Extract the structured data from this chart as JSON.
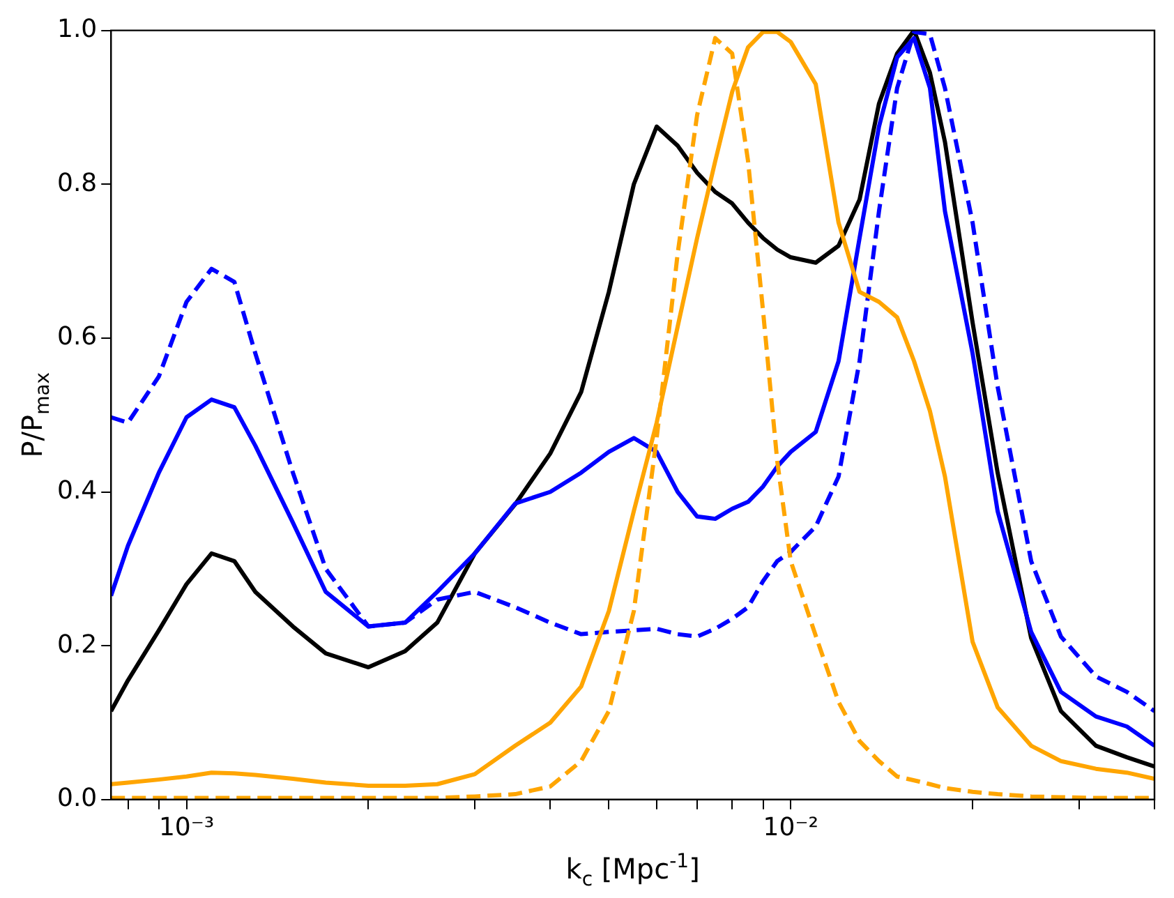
{
  "chart_data": {
    "type": "line",
    "xlabel": "k$_{c}$ [Mpc$^{-1}$]",
    "ylabel": "P/P$_{max}$",
    "log": "x",
    "marker": "none",
    "xlim": [
      0.00075,
      0.04
    ],
    "ylim": [
      0,
      1
    ],
    "xticks": [
      {
        "value": 0.0008,
        "label": null
      },
      {
        "value": 0.0009,
        "label": null
      },
      {
        "value": 0.001,
        "label": "10⁻³"
      },
      {
        "value": 0.002,
        "label": null
      },
      {
        "value": 0.003,
        "label": null
      },
      {
        "value": 0.004,
        "label": null
      },
      {
        "value": 0.005,
        "label": null
      },
      {
        "value": 0.006,
        "label": null
      },
      {
        "value": 0.007,
        "label": null
      },
      {
        "value": 0.008,
        "label": null
      },
      {
        "value": 0.009,
        "label": null
      },
      {
        "value": 0.01,
        "label": "10⁻²"
      },
      {
        "value": 0.02,
        "label": null
      },
      {
        "value": 0.03,
        "label": null
      },
      {
        "value": 0.04,
        "label": null
      }
    ],
    "yticks": [
      {
        "value": 0,
        "label": "0.0"
      },
      {
        "value": 0.2,
        "label": "0.2"
      },
      {
        "value": 0.4,
        "label": "0.4"
      },
      {
        "value": 0.6,
        "label": "0.6"
      },
      {
        "value": 0.8,
        "label": "0.8"
      },
      {
        "value": 1,
        "label": "1.0"
      }
    ],
    "x": [
      0.00075,
      0.0008,
      0.0009,
      0.001,
      0.0011,
      0.0012,
      0.0013,
      0.0015,
      0.0017,
      0.002,
      0.0023,
      0.0026,
      0.003,
      0.0035,
      0.004,
      0.0045,
      0.005,
      0.0055,
      0.006,
      0.0065,
      0.007,
      0.0075,
      0.008,
      0.0085,
      0.009,
      0.0095,
      0.01,
      0.011,
      0.012,
      0.013,
      0.014,
      0.015,
      0.016,
      0.017,
      0.018,
      0.02,
      0.022,
      0.025,
      0.028,
      0.032,
      0.036,
      0.04
    ],
    "series": [
      {
        "color": "#ffa500",
        "line_style": "solid",
        "values": [
          0.02,
          0.022,
          0.026,
          0.03,
          0.035,
          0.034,
          0.032,
          0.027,
          0.022,
          0.018,
          0.018,
          0.02,
          0.033,
          0.07,
          0.1,
          0.147,
          0.245,
          0.375,
          0.49,
          0.615,
          0.73,
          0.83,
          0.92,
          0.978,
          0.998,
          0.998,
          0.985,
          0.93,
          0.75,
          0.66,
          0.647,
          0.627,
          0.57,
          0.505,
          0.42,
          0.205,
          0.12,
          0.07,
          0.05,
          0.04,
          0.035,
          0.027
        ]
      },
      {
        "color": "#ffa500",
        "line_style": "dashed",
        "values": [
          0.002,
          0.002,
          0.002,
          0.002,
          0.002,
          0.002,
          0.002,
          0.002,
          0.002,
          0.002,
          0.002,
          0.002,
          0.004,
          0.007,
          0.017,
          0.05,
          0.115,
          0.245,
          0.47,
          0.71,
          0.89,
          0.99,
          0.97,
          0.83,
          0.635,
          0.44,
          0.31,
          0.213,
          0.127,
          0.076,
          0.05,
          0.03,
          0.025,
          0.02,
          0.015,
          0.01,
          0.007,
          0.004,
          0.003,
          0.002,
          0.002,
          0.002
        ]
      },
      {
        "color": "#0000ff",
        "line_style": "dashed",
        "values": [
          0.497,
          0.49,
          0.55,
          0.647,
          0.69,
          0.673,
          0.58,
          0.425,
          0.3,
          0.225,
          0.23,
          0.26,
          0.27,
          0.25,
          0.23,
          0.215,
          0.218,
          0.22,
          0.222,
          0.215,
          0.212,
          0.222,
          0.235,
          0.25,
          0.284,
          0.31,
          0.322,
          0.355,
          0.42,
          0.57,
          0.765,
          0.925,
          0.998,
          0.995,
          0.925,
          0.75,
          0.537,
          0.31,
          0.212,
          0.16,
          0.14,
          0.115
        ]
      },
      {
        "color": "#0000ff",
        "line_style": "solid",
        "values": [
          0.265,
          0.33,
          0.425,
          0.497,
          0.52,
          0.51,
          0.46,
          0.36,
          0.27,
          0.225,
          0.23,
          0.27,
          0.32,
          0.385,
          0.4,
          0.425,
          0.452,
          0.47,
          0.452,
          0.4,
          0.368,
          0.365,
          0.378,
          0.387,
          0.407,
          0.433,
          0.452,
          0.478,
          0.57,
          0.73,
          0.875,
          0.965,
          0.99,
          0.925,
          0.765,
          0.58,
          0.375,
          0.218,
          0.14,
          0.108,
          0.095,
          0.07
        ]
      },
      {
        "color": "#000000",
        "line_style": "solid",
        "values": [
          0.115,
          0.155,
          0.22,
          0.28,
          0.32,
          0.31,
          0.27,
          0.225,
          0.19,
          0.172,
          0.193,
          0.23,
          0.32,
          0.384,
          0.45,
          0.53,
          0.66,
          0.8,
          0.875,
          0.85,
          0.815,
          0.79,
          0.775,
          0.75,
          0.73,
          0.715,
          0.705,
          0.698,
          0.72,
          0.78,
          0.905,
          0.97,
          1.0,
          0.945,
          0.855,
          0.62,
          0.425,
          0.21,
          0.115,
          0.07,
          0.055,
          0.043
        ]
      }
    ]
  }
}
